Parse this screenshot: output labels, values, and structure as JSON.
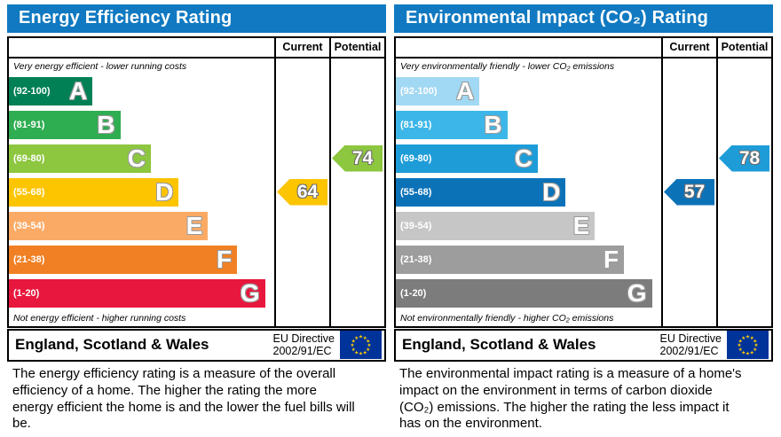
{
  "panels": [
    {
      "title": "Energy Efficiency Rating",
      "header_color": "#1079c1",
      "columns": {
        "current": "Current",
        "potential": "Potential"
      },
      "top_note": "Very energy efficient - lower running costs",
      "bottom_note": "Not energy efficient - higher running costs",
      "bands": [
        {
          "range": "(92-100)",
          "letter": "A",
          "color": "#008054",
          "width": "31.5%"
        },
        {
          "range": "(81-91)",
          "letter": "B",
          "color": "#2fad51",
          "width": "42%"
        },
        {
          "range": "(69-80)",
          "letter": "C",
          "color": "#8dc63f",
          "width": "53.5%"
        },
        {
          "range": "(55-68)",
          "letter": "D",
          "color": "#fdc400",
          "width": "64%"
        },
        {
          "range": "(39-54)",
          "letter": "E",
          "color": "#fbaa65",
          "width": "75%"
        },
        {
          "range": "(21-38)",
          "letter": "F",
          "color": "#f08023",
          "width": "86%"
        },
        {
          "range": "(1-20)",
          "letter": "G",
          "color": "#e8173d",
          "width": "96.5%"
        }
      ],
      "current": {
        "value": "64",
        "band": "D",
        "band_index": 3,
        "color": "#fdc400"
      },
      "potential": {
        "value": "74",
        "band": "C",
        "band_index": 2,
        "color": "#8dc63f"
      },
      "footer": {
        "region": "England, Scotland & Wales",
        "directive_line1": "EU Directive",
        "directive_line2": "2002/91/EC",
        "flag_field": "#003399",
        "flag_stars": "#ffcc00"
      },
      "description": "The energy efficiency rating is a measure of the overall efficiency of a home. The higher the rating the more energy efficient the home is and the lower the fuel bills will be."
    },
    {
      "title": "Environmental Impact (CO₂) Rating",
      "header_color": "#1079c1",
      "columns": {
        "current": "Current",
        "potential": "Potential"
      },
      "top_note": "Very environmentally friendly - lower CO₂ emissions",
      "bottom_note": "Not environmentally friendly - higher CO₂ emissions",
      "bands": [
        {
          "range": "(92-100)",
          "letter": "A",
          "color": "#a1d8f3",
          "width": "31.5%"
        },
        {
          "range": "(81-91)",
          "letter": "B",
          "color": "#3cb6e9",
          "width": "42%"
        },
        {
          "range": "(69-80)",
          "letter": "C",
          "color": "#1e9cd8",
          "width": "53.5%"
        },
        {
          "range": "(55-68)",
          "letter": "D",
          "color": "#0c72b8",
          "width": "64%"
        },
        {
          "range": "(39-54)",
          "letter": "E",
          "color": "#c6c6c6",
          "width": "75%"
        },
        {
          "range": "(21-38)",
          "letter": "F",
          "color": "#9d9d9d",
          "width": "86%"
        },
        {
          "range": "(1-20)",
          "letter": "G",
          "color": "#7c7c7c",
          "width": "96.5%"
        }
      ],
      "current": {
        "value": "57",
        "band": "D",
        "band_index": 3,
        "color": "#0c72b8"
      },
      "potential": {
        "value": "78",
        "band": "C",
        "band_index": 2,
        "color": "#1e9cd8"
      },
      "footer": {
        "region": "England, Scotland & Wales",
        "directive_line1": "EU Directive",
        "directive_line2": "2002/91/EC",
        "flag_field": "#003399",
        "flag_stars": "#ffcc00"
      },
      "description": "The environmental impact rating is a measure of a home's impact on the environment in terms of carbon dioxide (CO₂) emissions. The higher the rating the less impact it has on the environment."
    }
  ],
  "chart_data": [
    {
      "type": "bar",
      "title": "Energy Efficiency Rating",
      "categories": [
        "A (92-100)",
        "B (81-91)",
        "C (69-80)",
        "D (55-68)",
        "E (39-54)",
        "F (21-38)",
        "G (1-20)"
      ],
      "band_colors": [
        "#008054",
        "#2fad51",
        "#8dc63f",
        "#fdc400",
        "#fbaa65",
        "#f08023",
        "#e8173d"
      ],
      "bar_lengths_pct": [
        31.5,
        42,
        53.5,
        64,
        75,
        86,
        96.5
      ],
      "series": [
        {
          "name": "Current",
          "value": 64,
          "band": "D"
        },
        {
          "name": "Potential",
          "value": 74,
          "band": "C"
        }
      ],
      "scale": [
        1,
        100
      ],
      "orientation": "horizontal"
    },
    {
      "type": "bar",
      "title": "Environmental Impact (CO₂) Rating",
      "categories": [
        "A (92-100)",
        "B (81-91)",
        "C (69-80)",
        "D (55-68)",
        "E (39-54)",
        "F (21-38)",
        "G (1-20)"
      ],
      "band_colors": [
        "#a1d8f3",
        "#3cb6e9",
        "#1e9cd8",
        "#0c72b8",
        "#c6c6c6",
        "#9d9d9d",
        "#7c7c7c"
      ],
      "bar_lengths_pct": [
        31.5,
        42,
        53.5,
        64,
        75,
        86,
        96.5
      ],
      "series": [
        {
          "name": "Current",
          "value": 57,
          "band": "D"
        },
        {
          "name": "Potential",
          "value": 78,
          "band": "C"
        }
      ],
      "scale": [
        1,
        100
      ],
      "orientation": "horizontal"
    }
  ]
}
